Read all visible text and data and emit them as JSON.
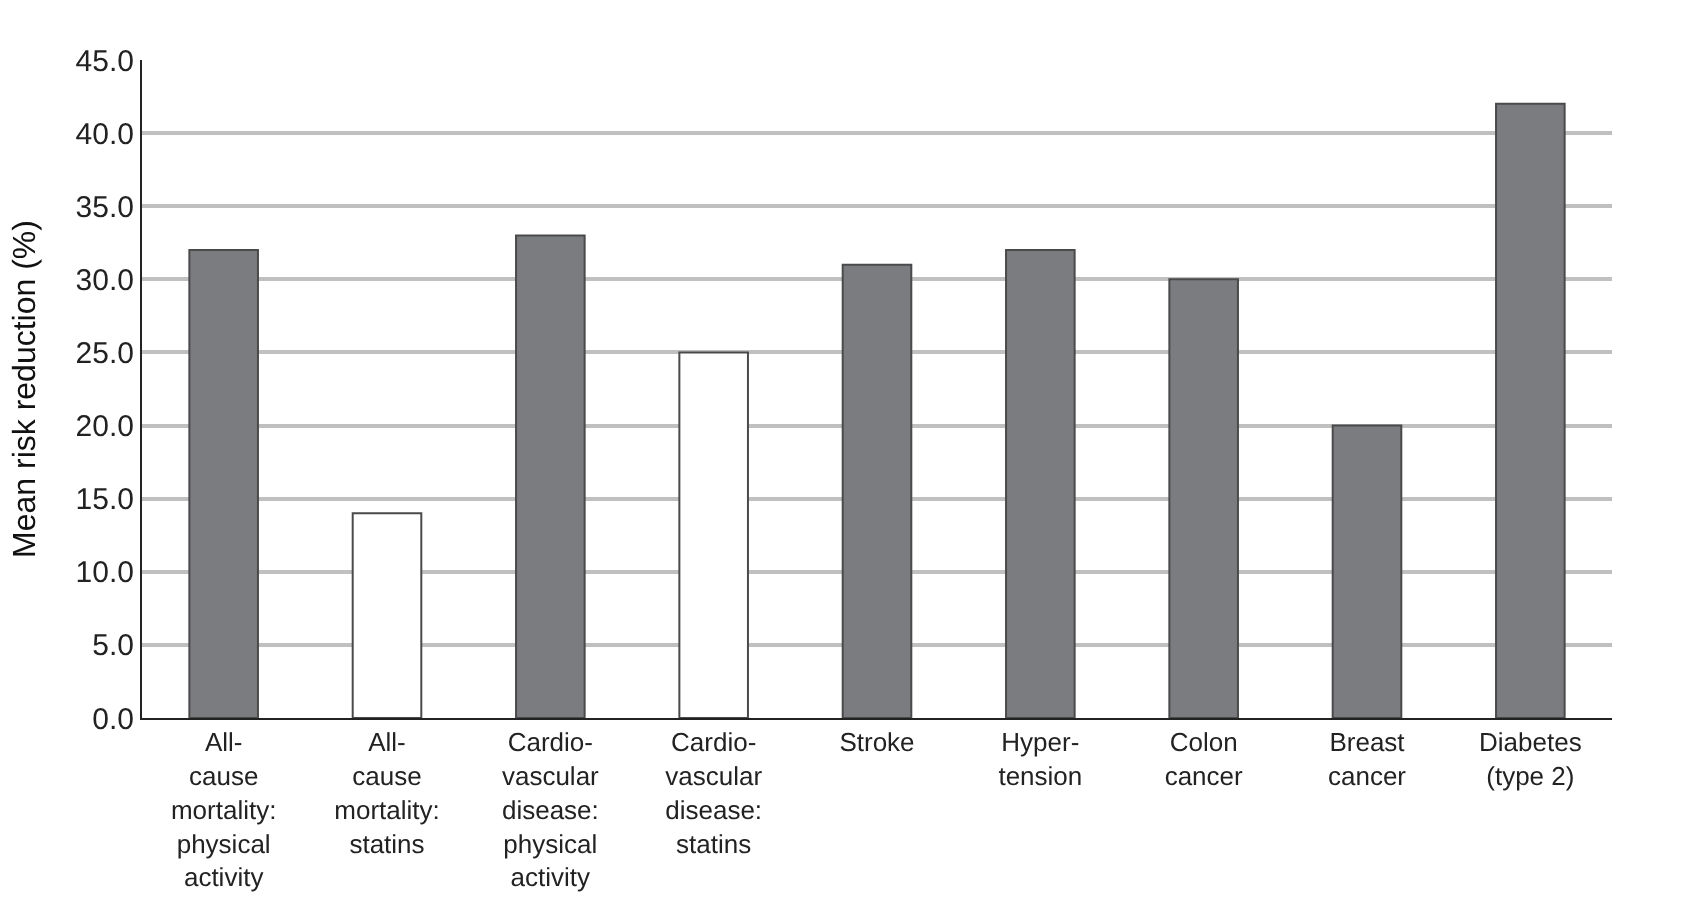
{
  "chart_data": {
    "type": "bar",
    "categories": [
      "All-\ncause\nmortality:\nphysical\nactivity",
      "All-\ncause\nmortality:\nstatins",
      "Cardio-\nvascular\ndisease:\nphysical\nactivity",
      "Cardio-\nvascular\ndisease:\nstatins",
      "Stroke",
      "Hyper-\ntension",
      "Colon\ncancer",
      "Breast\ncancer",
      "Diabetes\n(type 2)"
    ],
    "values": [
      32,
      14,
      33,
      25,
      31,
      32,
      30,
      20,
      42
    ],
    "colors": [
      "#7b7c80",
      "#ffffff",
      "#7b7c80",
      "#ffffff",
      "#7b7c80",
      "#7b7c80",
      "#7b7c80",
      "#7b7c80",
      "#7b7c80"
    ],
    "ylabel": "Mean risk reduction (%)",
    "ylim": [
      0,
      45
    ],
    "yticks": [
      {
        "value": 0,
        "label": "0.0"
      },
      {
        "value": 5,
        "label": "5.0"
      },
      {
        "value": 10,
        "label": "10.0"
      },
      {
        "value": 15,
        "label": "15.0"
      },
      {
        "value": 20,
        "label": "20.0"
      },
      {
        "value": 25,
        "label": "25.0"
      },
      {
        "value": 30,
        "label": "30.0"
      },
      {
        "value": 35,
        "label": "35.0"
      },
      {
        "value": 40,
        "label": "40.0"
      },
      {
        "value": 45,
        "label": "45.0"
      }
    ],
    "grid": "y"
  }
}
